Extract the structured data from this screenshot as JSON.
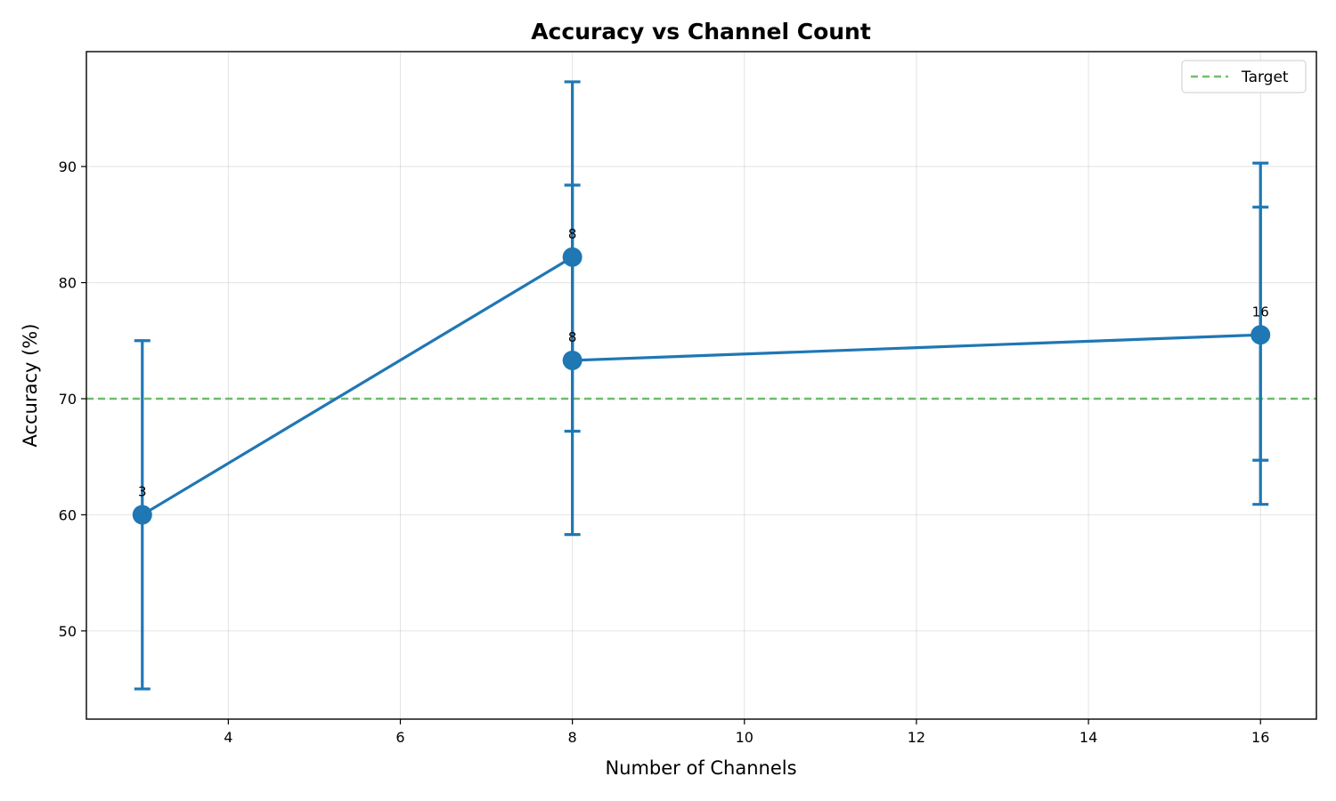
{
  "chart_data": {
    "type": "line",
    "title": "Accuracy vs Channel Count",
    "xlabel": "Number of Channels",
    "ylabel": "Accuracy (%)",
    "xlim": [
      2.35,
      16.65
    ],
    "ylim": [
      42.4,
      99.9
    ],
    "xticks": [
      4,
      6,
      8,
      10,
      12,
      14,
      16
    ],
    "yticks": [
      50,
      60,
      70,
      80,
      90
    ],
    "grid": true,
    "legend_position": "top-right",
    "colors": {
      "series": "#1f77b4",
      "target": "#4daf4a"
    },
    "series": [
      {
        "points": [
          {
            "x": 3,
            "y": 60.0,
            "yerr_low": 45.0,
            "yerr_high": 75.0,
            "label": "3"
          },
          {
            "x": 8,
            "y": 82.2,
            "yerr_low": 67.2,
            "yerr_high": 97.3,
            "label": "8"
          },
          {
            "x": 8,
            "y": 73.3,
            "yerr_low": 58.3,
            "yerr_high": 88.4,
            "label": "8"
          },
          {
            "x": 16,
            "y": 75.5,
            "yerr_low": 60.9,
            "yerr_high": 90.3,
            "label": "16"
          }
        ],
        "extra_error_bars": [
          {
            "x": 16,
            "yerr_low": 64.7,
            "yerr_high": 86.5
          }
        ]
      }
    ],
    "reference_lines": [
      {
        "name": "Target",
        "y": 70,
        "style": "dashed"
      }
    ]
  }
}
